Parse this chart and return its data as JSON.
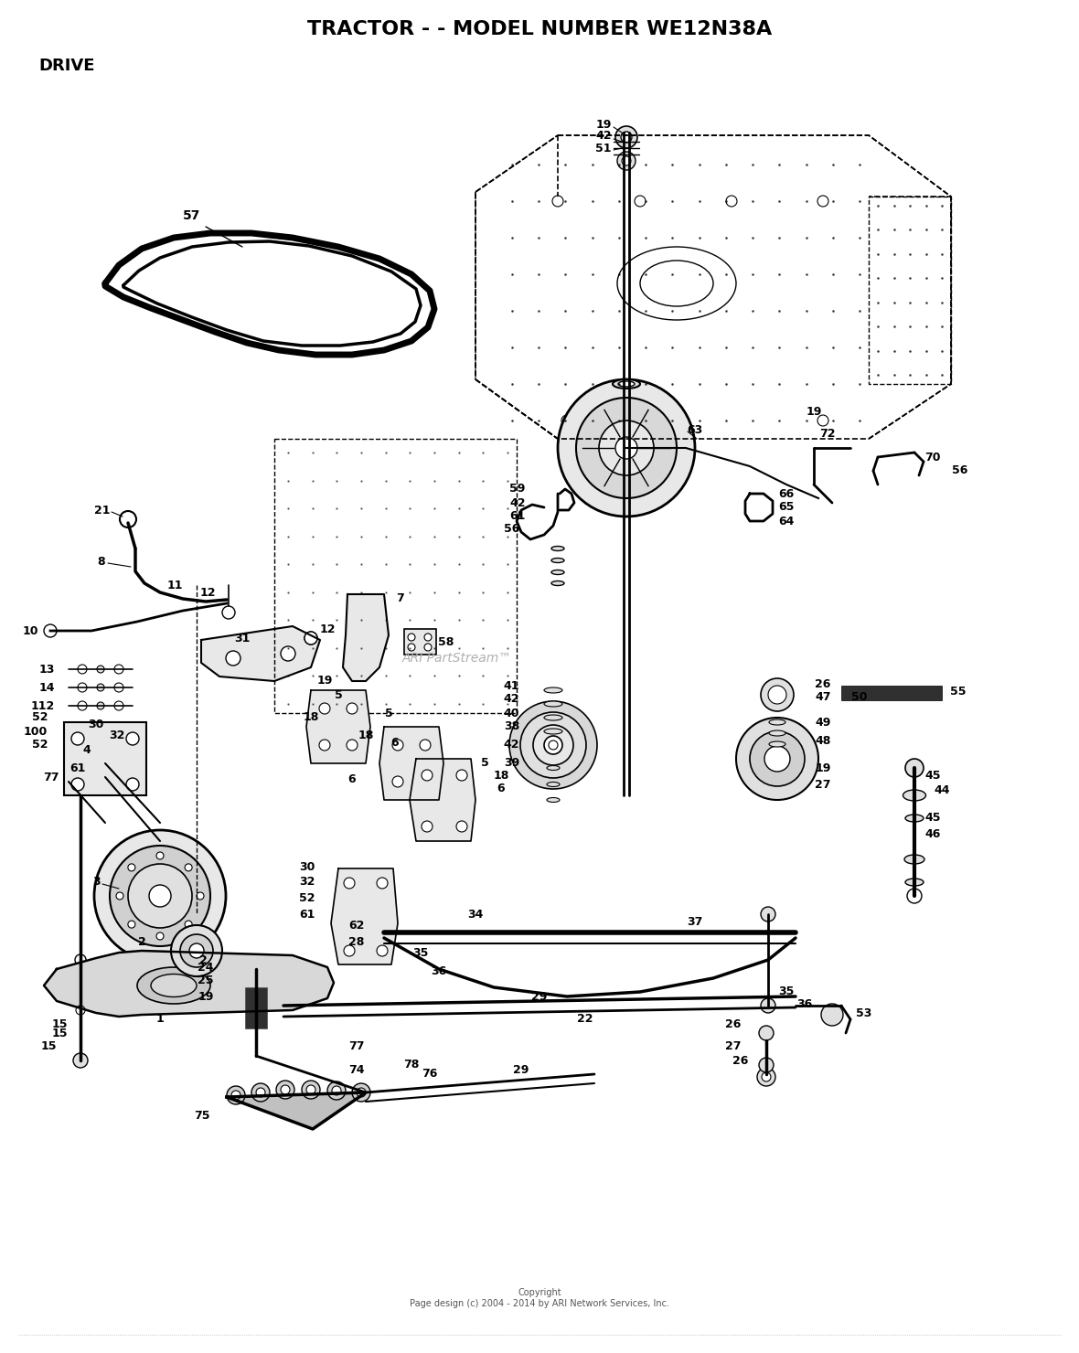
{
  "title": "TRACTOR - - MODEL NUMBER WE12N38A",
  "subtitle": "DRIVE",
  "copyright": "Copyright\nPage design (c) 2004 - 2014 by ARI Network Services, Inc.",
  "watermark": "ARI PartStream™",
  "bg_color": "#ffffff",
  "lc": "#000000",
  "title_fs": 16,
  "subtitle_fs": 13,
  "label_fs": 9,
  "fig_w": 11.8,
  "fig_h": 14.8,
  "dpi": 100
}
